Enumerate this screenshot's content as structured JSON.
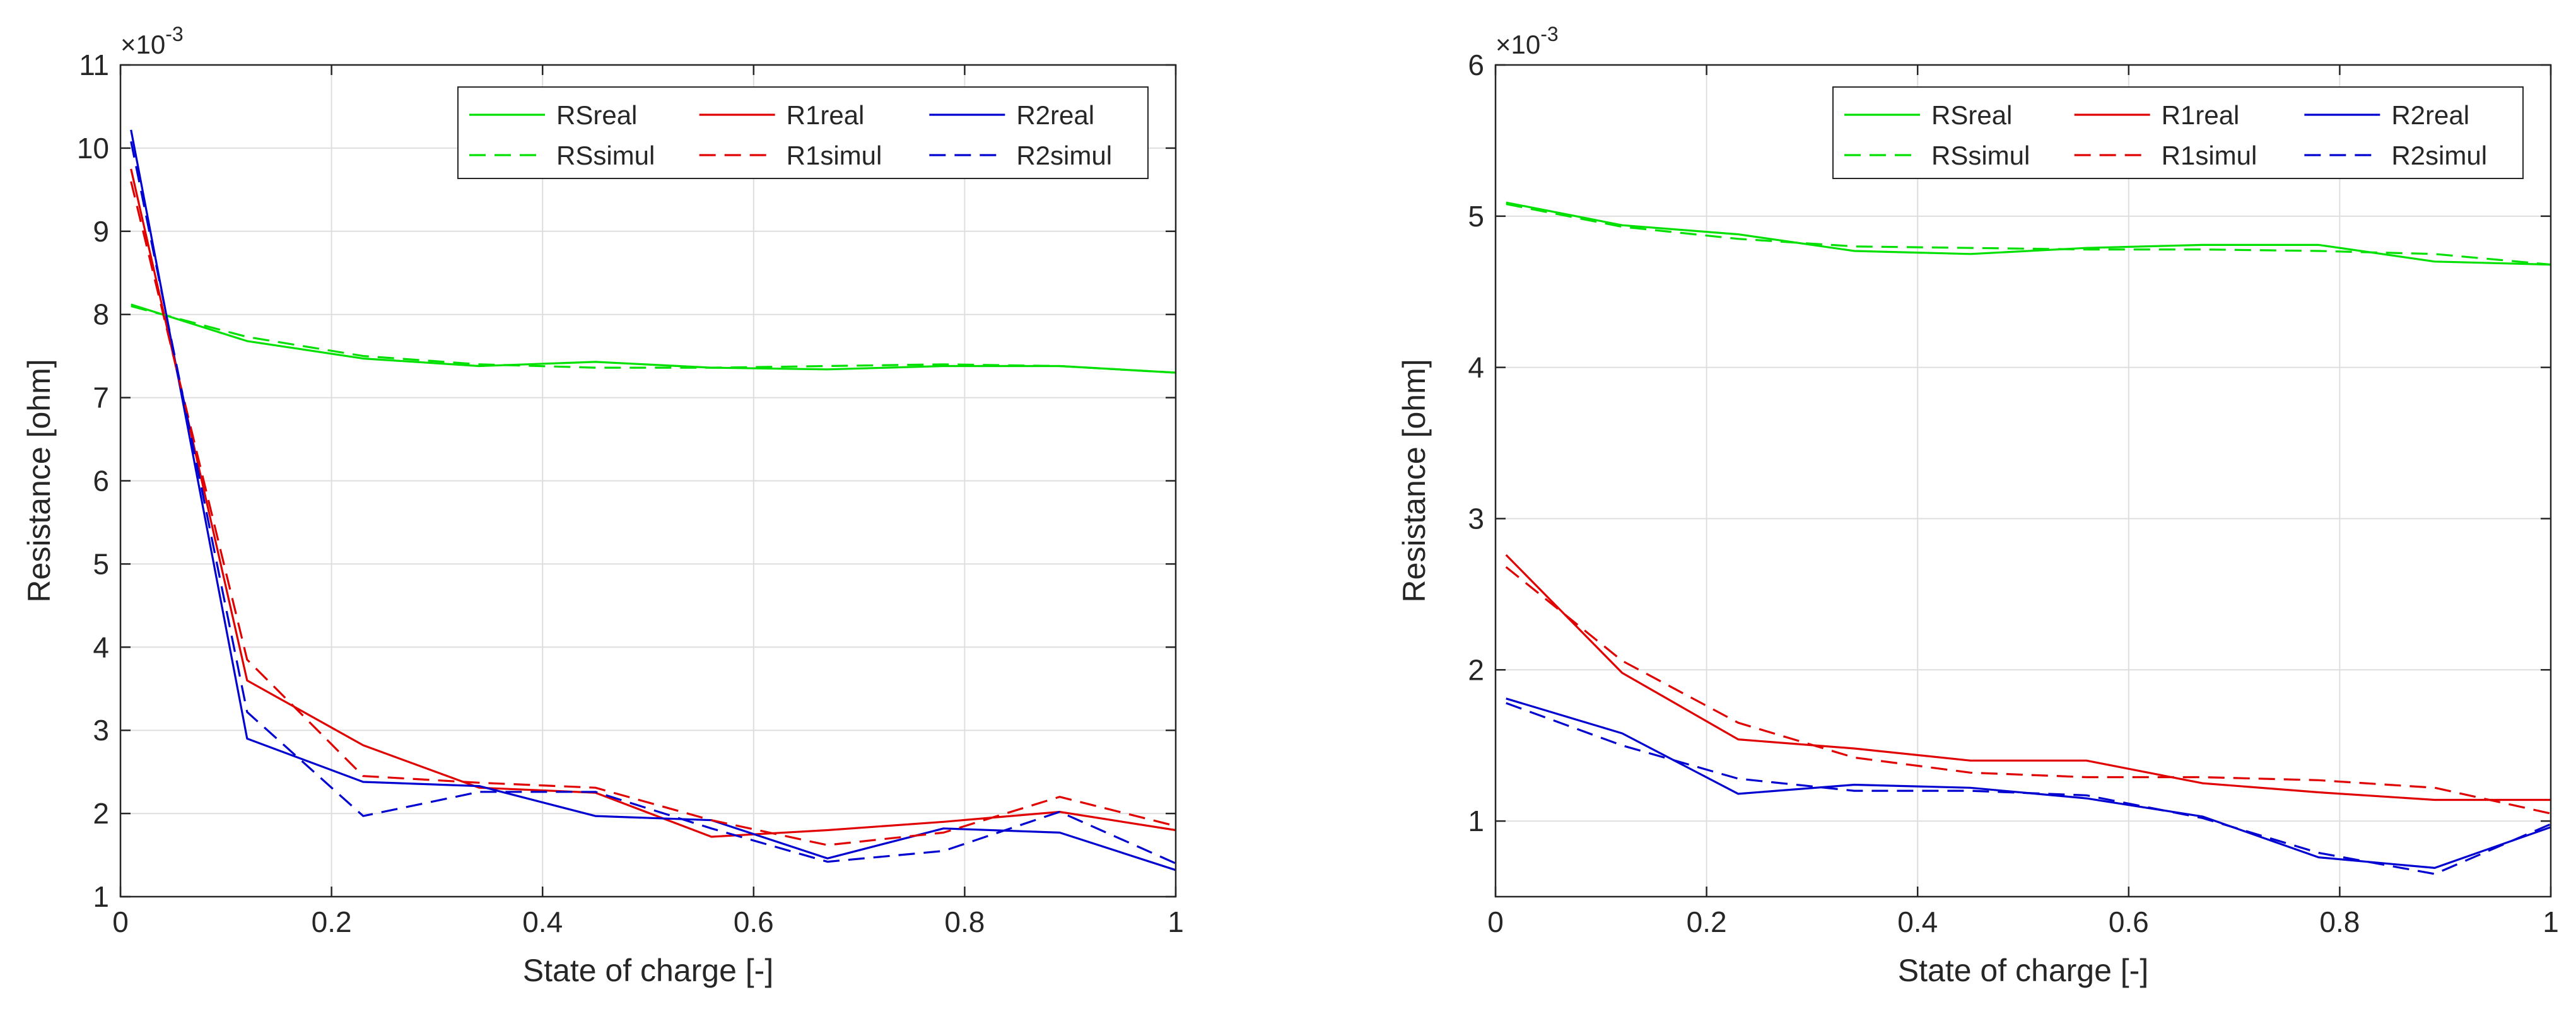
{
  "chart_data": [
    {
      "type": "line",
      "xlabel": "State of charge [-]",
      "ylabel": "Resistance [ohm]",
      "y_multiplier": "×10",
      "y_exponent": "-3",
      "xlim": [
        0,
        1
      ],
      "ylim": [
        1,
        11
      ],
      "xticks": [
        0,
        0.2,
        0.4,
        0.6,
        0.8,
        1
      ],
      "xtick_labels": [
        "0",
        "0.2",
        "0.4",
        "0.6",
        "0.8",
        "1"
      ],
      "yticks": [
        1,
        2,
        3,
        4,
        5,
        6,
        7,
        8,
        9,
        10,
        11
      ],
      "ytick_labels": [
        "1",
        "2",
        "3",
        "4",
        "5",
        "6",
        "7",
        "8",
        "9",
        "10",
        "11"
      ],
      "grid": true,
      "legend_position": "top-right",
      "series": [
        {
          "name": "RSreal",
          "color": "#00e000",
          "dash": "solid",
          "x": [
            0.01,
            0.12,
            0.23,
            0.34,
            0.45,
            0.56,
            0.67,
            0.78,
            0.89,
            1.0
          ],
          "y": [
            8.12,
            7.68,
            7.47,
            7.38,
            7.43,
            7.36,
            7.34,
            7.38,
            7.38,
            7.3
          ]
        },
        {
          "name": "R1real",
          "color": "#e00000",
          "dash": "solid",
          "x": [
            0.01,
            0.12,
            0.23,
            0.34,
            0.45,
            0.56,
            0.67,
            0.78,
            0.89,
            1.0
          ],
          "y": [
            9.75,
            3.6,
            2.82,
            2.31,
            2.25,
            1.72,
            1.8,
            1.9,
            2.02,
            1.8
          ]
        },
        {
          "name": "R2real",
          "color": "#0000d0",
          "dash": "solid",
          "x": [
            0.01,
            0.12,
            0.23,
            0.34,
            0.45,
            0.56,
            0.67,
            0.78,
            0.89,
            1.0
          ],
          "y": [
            10.22,
            2.9,
            2.38,
            2.33,
            1.97,
            1.92,
            1.46,
            1.82,
            1.77,
            1.32
          ]
        },
        {
          "name": "RSsimul",
          "color": "#00e000",
          "dash": "dashed",
          "x": [
            0.01,
            0.12,
            0.23,
            0.34,
            0.45,
            0.56,
            0.67,
            0.78,
            0.89,
            1.0
          ],
          "y": [
            8.1,
            7.73,
            7.5,
            7.4,
            7.36,
            7.36,
            7.38,
            7.4,
            7.38,
            7.3
          ]
        },
        {
          "name": "R1simul",
          "color": "#e00000",
          "dash": "dashed",
          "x": [
            0.01,
            0.12,
            0.23,
            0.34,
            0.45,
            0.56,
            0.67,
            0.78,
            0.89,
            1.0
          ],
          "y": [
            9.6,
            3.85,
            2.45,
            2.37,
            2.31,
            1.92,
            1.62,
            1.77,
            2.2,
            1.85
          ]
        },
        {
          "name": "R2simul",
          "color": "#0000d0",
          "dash": "dashed",
          "x": [
            0.01,
            0.12,
            0.23,
            0.34,
            0.45,
            0.56,
            0.67,
            0.78,
            0.89,
            1.0
          ],
          "y": [
            10.08,
            3.22,
            1.97,
            2.26,
            2.26,
            1.82,
            1.42,
            1.55,
            2.02,
            1.4
          ]
        }
      ]
    },
    {
      "type": "line",
      "xlabel": "State of charge [-]",
      "ylabel": "Resistance [ohm]",
      "y_multiplier": "×10",
      "y_exponent": "-3",
      "xlim": [
        0,
        1
      ],
      "ylim": [
        0.5,
        6
      ],
      "xticks": [
        0,
        0.2,
        0.4,
        0.6,
        0.8,
        1
      ],
      "xtick_labels": [
        "0",
        "0.2",
        "0.4",
        "0.6",
        "0.8",
        "1"
      ],
      "yticks": [
        1,
        2,
        3,
        4,
        5,
        6
      ],
      "ytick_labels": [
        "1",
        "2",
        "3",
        "4",
        "5",
        "6"
      ],
      "grid": true,
      "legend_position": "top-right",
      "series": [
        {
          "name": "RSreal",
          "color": "#00e000",
          "dash": "solid",
          "x": [
            0.01,
            0.12,
            0.23,
            0.34,
            0.45,
            0.56,
            0.67,
            0.78,
            0.89,
            1.0
          ],
          "y": [
            5.09,
            4.94,
            4.88,
            4.77,
            4.75,
            4.79,
            4.81,
            4.81,
            4.7,
            4.68
          ]
        },
        {
          "name": "R1real",
          "color": "#e00000",
          "dash": "solid",
          "x": [
            0.01,
            0.12,
            0.23,
            0.34,
            0.45,
            0.56,
            0.67,
            0.78,
            0.89,
            1.0
          ],
          "y": [
            2.76,
            1.98,
            1.54,
            1.48,
            1.4,
            1.4,
            1.25,
            1.19,
            1.14,
            1.14
          ]
        },
        {
          "name": "R2real",
          "color": "#0000d0",
          "dash": "solid",
          "x": [
            0.01,
            0.12,
            0.23,
            0.34,
            0.45,
            0.56,
            0.67,
            0.78,
            0.89,
            1.0
          ],
          "y": [
            1.81,
            1.58,
            1.18,
            1.24,
            1.22,
            1.15,
            1.03,
            0.76,
            0.69,
            0.96
          ]
        },
        {
          "name": "RSsimul",
          "color": "#00e000",
          "dash": "dashed",
          "x": [
            0.01,
            0.12,
            0.23,
            0.34,
            0.45,
            0.56,
            0.67,
            0.78,
            0.89,
            1.0
          ],
          "y": [
            5.08,
            4.93,
            4.85,
            4.8,
            4.79,
            4.78,
            4.78,
            4.77,
            4.75,
            4.68
          ]
        },
        {
          "name": "R1simul",
          "color": "#e00000",
          "dash": "dashed",
          "x": [
            0.01,
            0.12,
            0.23,
            0.34,
            0.45,
            0.56,
            0.67,
            0.78,
            0.89,
            1.0
          ],
          "y": [
            2.68,
            2.06,
            1.65,
            1.42,
            1.32,
            1.29,
            1.29,
            1.27,
            1.22,
            1.05
          ]
        },
        {
          "name": "R2simul",
          "color": "#0000d0",
          "dash": "dashed",
          "x": [
            0.01,
            0.12,
            0.23,
            0.34,
            0.45,
            0.56,
            0.67,
            0.78,
            0.89,
            1.0
          ],
          "y": [
            1.78,
            1.5,
            1.28,
            1.2,
            1.2,
            1.17,
            1.02,
            0.79,
            0.65,
            0.98
          ]
        }
      ]
    }
  ]
}
